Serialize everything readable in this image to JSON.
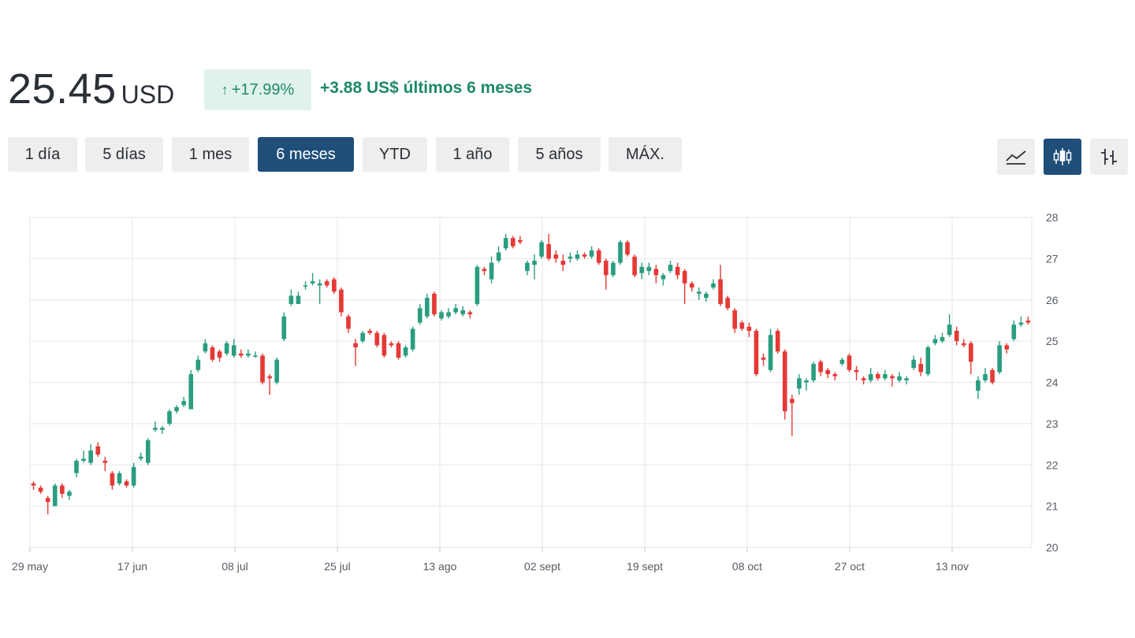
{
  "quote": {
    "price": "25.45",
    "currency": "USD",
    "change_pct": "+17.99%",
    "change_abs": "+3.88 US$ últimos 6 meses",
    "up_color": "#2a9d80",
    "down_color": "#e53935"
  },
  "ranges": [
    "1 día",
    "5 días",
    "1 mes",
    "6 meses",
    "YTD",
    "1 año",
    "5 años",
    "MÁX."
  ],
  "active_range": "6 meses",
  "chart_types": [
    {
      "icon": "line-chart-icon"
    },
    {
      "icon": "candlestick-icon",
      "active": true
    },
    {
      "icon": "ohlc-bar-icon"
    }
  ],
  "chart_data": {
    "type": "candlestick",
    "title": "",
    "xlabel": "",
    "ylabel": "",
    "ylim": [
      20,
      28
    ],
    "y_ticks": [
      "20",
      "21",
      "22",
      "23",
      "24",
      "25",
      "26",
      "27",
      "28"
    ],
    "x_ticks": [
      "29 may",
      "17 jun",
      "08 jul",
      "25 jul",
      "13 ago",
      "02 sept",
      "19 sept",
      "08 oct",
      "27 oct",
      "13 nov"
    ],
    "grid": true,
    "candles": [
      [
        21.55,
        21.5,
        21.6,
        21.4
      ],
      [
        21.45,
        21.35,
        21.5,
        21.3
      ],
      [
        21.2,
        21.1,
        21.25,
        20.8
      ],
      [
        21.0,
        21.5,
        21.55,
        21.0
      ],
      [
        21.5,
        21.3,
        21.55,
        21.2
      ],
      [
        21.25,
        21.35,
        21.4,
        21.15
      ],
      [
        21.8,
        22.1,
        22.15,
        21.7
      ],
      [
        22.1,
        22.15,
        22.35,
        22.05
      ],
      [
        22.05,
        22.35,
        22.5,
        22.0
      ],
      [
        22.45,
        22.25,
        22.55,
        22.2
      ],
      [
        22.1,
        22.05,
        22.2,
        21.85
      ],
      [
        21.8,
        21.5,
        21.85,
        21.4
      ],
      [
        21.55,
        21.8,
        21.85,
        21.5
      ],
      [
        21.6,
        21.5,
        21.65,
        21.45
      ],
      [
        21.5,
        21.95,
        22.05,
        21.45
      ],
      [
        22.15,
        22.2,
        22.3,
        22.1
      ],
      [
        22.05,
        22.6,
        22.65,
        22.0
      ],
      [
        22.85,
        22.9,
        23.05,
        22.8
      ],
      [
        22.85,
        22.9,
        22.95,
        22.75
      ],
      [
        23.0,
        23.3,
        23.35,
        22.95
      ],
      [
        23.3,
        23.4,
        23.45,
        23.25
      ],
      [
        23.45,
        23.55,
        23.65,
        23.4
      ],
      [
        23.35,
        24.2,
        24.3,
        23.35
      ],
      [
        24.3,
        24.55,
        24.65,
        24.25
      ],
      [
        24.75,
        24.95,
        25.05,
        24.7
      ],
      [
        24.85,
        24.55,
        24.9,
        24.5
      ],
      [
        24.75,
        24.6,
        24.8,
        24.5
      ],
      [
        24.7,
        24.95,
        25.0,
        24.65
      ],
      [
        24.65,
        24.9,
        25.05,
        24.6
      ],
      [
        24.7,
        24.65,
        24.8,
        24.6
      ],
      [
        24.65,
        24.7,
        24.8,
        24.6
      ],
      [
        24.65,
        24.65,
        24.75,
        24.6
      ],
      [
        24.65,
        24.0,
        24.7,
        23.95
      ],
      [
        24.15,
        24.1,
        24.2,
        23.7
      ],
      [
        24.0,
        24.55,
        24.6,
        23.95
      ],
      [
        25.05,
        25.6,
        25.7,
        25.0
      ],
      [
        25.9,
        26.1,
        26.25,
        25.85
      ],
      [
        25.9,
        26.1,
        26.2,
        25.9
      ],
      [
        26.35,
        26.35,
        26.45,
        26.25
      ],
      [
        26.4,
        26.45,
        26.65,
        26.35
      ],
      [
        26.35,
        26.4,
        26.5,
        25.9
      ],
      [
        26.45,
        26.35,
        26.5,
        26.3
      ],
      [
        26.5,
        26.2,
        26.55,
        26.15
      ],
      [
        26.25,
        25.7,
        26.3,
        25.6
      ],
      [
        25.6,
        25.3,
        25.65,
        25.2
      ],
      [
        24.95,
        24.85,
        25.05,
        24.4
      ],
      [
        25.0,
        25.2,
        25.25,
        24.95
      ],
      [
        25.25,
        25.2,
        25.3,
        25.15
      ],
      [
        25.2,
        24.9,
        25.25,
        24.85
      ],
      [
        25.15,
        24.65,
        25.2,
        24.6
      ],
      [
        24.95,
        24.9,
        25.0,
        24.85
      ],
      [
        24.95,
        24.6,
        25.0,
        24.55
      ],
      [
        24.65,
        24.85,
        24.9,
        24.6
      ],
      [
        24.8,
        25.3,
        25.35,
        24.75
      ],
      [
        25.45,
        25.8,
        25.9,
        25.4
      ],
      [
        25.6,
        26.05,
        26.15,
        25.55
      ],
      [
        26.15,
        25.65,
        26.2,
        25.6
      ],
      [
        25.55,
        25.7,
        25.75,
        25.5
      ],
      [
        25.6,
        25.7,
        25.8,
        25.55
      ],
      [
        25.7,
        25.8,
        25.9,
        25.65
      ],
      [
        25.65,
        25.75,
        25.85,
        25.6
      ],
      [
        25.7,
        25.65,
        25.75,
        25.55
      ],
      [
        25.9,
        26.8,
        26.85,
        25.85
      ],
      [
        26.75,
        26.7,
        26.8,
        26.6
      ],
      [
        26.5,
        26.9,
        27.05,
        26.4
      ],
      [
        26.95,
        27.15,
        27.3,
        26.9
      ],
      [
        27.25,
        27.5,
        27.6,
        27.2
      ],
      [
        27.5,
        27.3,
        27.55,
        27.25
      ],
      [
        27.45,
        27.4,
        27.55,
        27.35
      ],
      [
        26.7,
        26.9,
        26.95,
        26.6
      ],
      [
        26.85,
        26.95,
        27.1,
        26.5
      ],
      [
        27.05,
        27.4,
        27.45,
        27.0
      ],
      [
        27.35,
        27.0,
        27.6,
        26.95
      ],
      [
        27.1,
        27.0,
        27.2,
        26.9
      ],
      [
        26.95,
        26.85,
        27.1,
        26.7
      ],
      [
        27.0,
        27.05,
        27.15,
        26.9
      ],
      [
        27.0,
        27.1,
        27.2,
        26.95
      ],
      [
        27.1,
        27.05,
        27.15,
        27.0
      ],
      [
        27.05,
        27.2,
        27.3,
        27.0
      ],
      [
        27.2,
        26.9,
        27.25,
        26.85
      ],
      [
        26.95,
        26.6,
        27.0,
        26.25
      ],
      [
        26.6,
        26.9,
        26.95,
        26.55
      ],
      [
        26.9,
        27.4,
        27.45,
        26.85
      ],
      [
        27.4,
        27.1,
        27.45,
        27.05
      ],
      [
        27.05,
        26.6,
        27.1,
        26.55
      ],
      [
        26.65,
        26.8,
        26.9,
        26.5
      ],
      [
        26.7,
        26.8,
        26.9,
        26.6
      ],
      [
        26.75,
        26.6,
        26.85,
        26.4
      ],
      [
        26.5,
        26.6,
        26.65,
        26.35
      ],
      [
        26.7,
        26.85,
        26.95,
        26.65
      ],
      [
        26.8,
        26.6,
        26.9,
        26.5
      ],
      [
        26.7,
        26.4,
        26.75,
        25.9
      ],
      [
        26.4,
        26.3,
        26.45,
        26.2
      ],
      [
        26.15,
        26.2,
        26.3,
        26.0
      ],
      [
        26.05,
        26.15,
        26.2,
        25.95
      ],
      [
        26.3,
        26.4,
        26.5,
        26.25
      ],
      [
        26.5,
        25.9,
        26.85,
        25.85
      ],
      [
        26.05,
        25.8,
        26.1,
        25.75
      ],
      [
        25.75,
        25.3,
        25.8,
        25.2
      ],
      [
        25.45,
        25.3,
        25.5,
        25.25
      ],
      [
        25.35,
        25.25,
        25.45,
        25.1
      ],
      [
        25.25,
        24.2,
        25.3,
        24.15
      ],
      [
        24.6,
        24.55,
        24.7,
        24.4
      ],
      [
        24.3,
        25.15,
        25.3,
        24.25
      ],
      [
        25.25,
        24.75,
        25.3,
        24.7
      ],
      [
        24.75,
        23.3,
        24.8,
        23.1
      ],
      [
        23.6,
        23.5,
        23.7,
        22.7
      ],
      [
        23.85,
        24.1,
        24.2,
        23.7
      ],
      [
        24.0,
        24.05,
        24.1,
        23.8
      ],
      [
        24.05,
        24.45,
        24.5,
        24.0
      ],
      [
        24.5,
        24.25,
        24.55,
        24.15
      ],
      [
        24.3,
        24.2,
        24.35,
        24.1
      ],
      [
        24.2,
        24.15,
        24.25,
        24.05
      ],
      [
        24.45,
        24.55,
        24.6,
        24.4
      ],
      [
        24.65,
        24.3,
        24.7,
        24.25
      ],
      [
        24.3,
        24.25,
        24.4,
        24.05
      ],
      [
        24.1,
        24.05,
        24.15,
        23.95
      ],
      [
        24.05,
        24.2,
        24.35,
        24.0
      ],
      [
        24.2,
        24.1,
        24.25,
        24.05
      ],
      [
        24.1,
        24.2,
        24.3,
        24.05
      ],
      [
        24.15,
        24.1,
        24.2,
        23.9
      ],
      [
        24.05,
        24.15,
        24.25,
        24.0
      ],
      [
        24.05,
        24.1,
        24.15,
        23.95
      ],
      [
        24.35,
        24.55,
        24.65,
        24.3
      ],
      [
        24.45,
        24.25,
        24.6,
        24.15
      ],
      [
        24.2,
        24.85,
        24.9,
        24.15
      ],
      [
        24.95,
        25.05,
        25.15,
        24.9
      ],
      [
        25.0,
        25.1,
        25.2,
        24.95
      ],
      [
        25.15,
        25.4,
        25.65,
        25.1
      ],
      [
        25.25,
        25.0,
        25.35,
        24.9
      ],
      [
        24.95,
        24.9,
        25.05,
        24.85
      ],
      [
        24.95,
        24.5,
        25.0,
        24.2
      ],
      [
        23.8,
        24.05,
        24.15,
        23.6
      ],
      [
        24.05,
        24.2,
        24.35,
        24.0
      ],
      [
        24.3,
        24.0,
        24.35,
        23.95
      ],
      [
        24.25,
        24.9,
        25.0,
        24.2
      ],
      [
        24.9,
        24.8,
        24.95,
        24.7
      ],
      [
        25.05,
        25.4,
        25.5,
        25.0
      ],
      [
        25.4,
        25.45,
        25.6,
        25.35
      ],
      [
        25.5,
        25.45,
        25.6,
        25.4
      ]
    ]
  }
}
